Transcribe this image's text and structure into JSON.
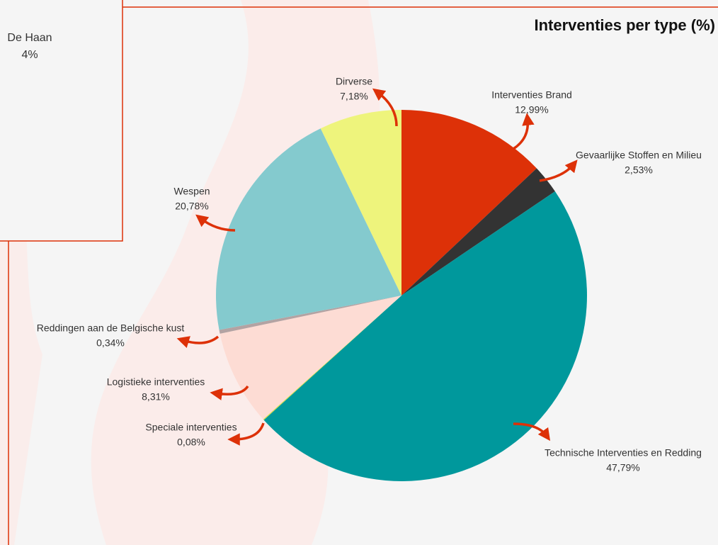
{
  "sidebox": {
    "name": "De Haan",
    "label": "4%"
  },
  "chart_data": {
    "type": "pie",
    "title": "Interventies per type (%)",
    "categories": [
      "Interventies Brand",
      "Gevaarlijke Stoffen en Milieu",
      "Technische Interventies en Redding",
      "Speciale interventies",
      "Logistieke interventies",
      "Reddingen aan de Belgische kust",
      "Wespen",
      "Dirverse"
    ],
    "values": [
      12.99,
      2.53,
      47.79,
      0.08,
      8.31,
      0.34,
      20.78,
      7.18
    ],
    "value_labels": [
      "12,99%",
      "2,53%",
      "47,79%",
      "0,08%",
      "8,31%",
      "0,34%",
      "20,78%",
      "7,18%"
    ],
    "colors": [
      "#dd3108",
      "#333333",
      "#00989c",
      "#d9e04a",
      "#fddcd4",
      "#b3a3a3",
      "#84cace",
      "#eef47c"
    ]
  }
}
